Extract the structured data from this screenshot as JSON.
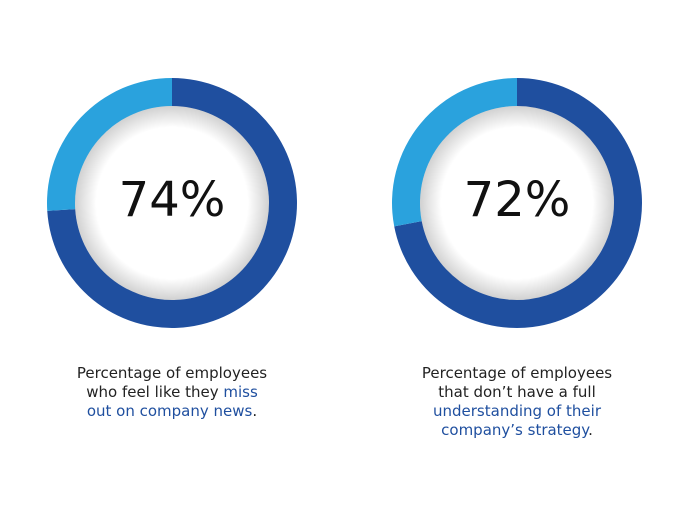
{
  "chart_data": [
    {
      "type": "donut",
      "values": [
        74,
        26
      ],
      "value_labels": [
        "74%",
        null
      ],
      "colors": [
        "#1f4f9f",
        "#2aa2dd"
      ],
      "caption": [
        [
          {
            "text": "Percentage of employees",
            "color": "#222222"
          }
        ],
        [
          {
            "text": "who feel like they ",
            "color": "#222222"
          },
          {
            "text": "miss",
            "color": "#1f4f9f"
          }
        ],
        [
          {
            "text": "out on company news",
            "color": "#1f4f9f"
          },
          {
            "text": ".",
            "color": "#222222"
          }
        ]
      ]
    },
    {
      "type": "donut",
      "values": [
        72,
        28
      ],
      "value_labels": [
        "72%",
        null
      ],
      "colors": [
        "#1f4f9f",
        "#2aa2dd"
      ],
      "caption": [
        [
          {
            "text": "Percentage of employees",
            "color": "#222222"
          }
        ],
        [
          {
            "text": "that don’t have a full",
            "color": "#222222"
          }
        ],
        [
          {
            "text": "understanding of their",
            "color": "#1f4f9f"
          }
        ],
        [
          {
            "text": "company’s strategy",
            "color": "#1f4f9f"
          },
          {
            "text": ".",
            "color": "#222222"
          }
        ]
      ]
    }
  ]
}
